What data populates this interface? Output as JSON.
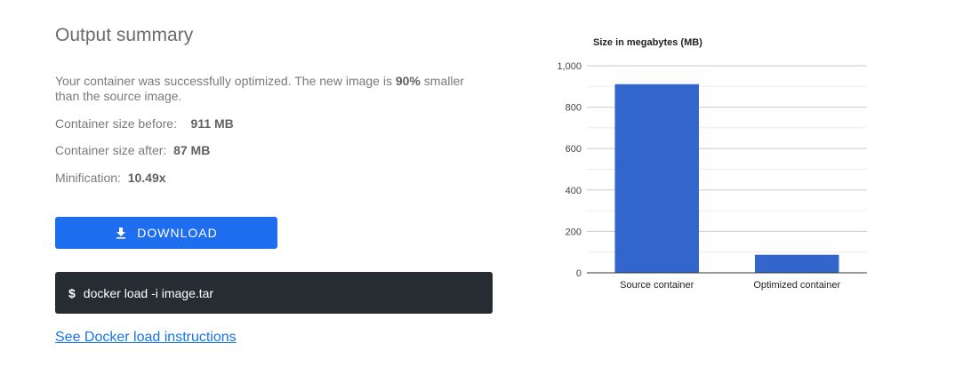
{
  "summary": {
    "title": "Output summary",
    "desc_part1": "Your container was successfully optimized. The new image is ",
    "desc_bold": "90%",
    "desc_part2": " smaller than the source image.",
    "before_label": "Container size before:",
    "before_value": "911 MB",
    "after_label": "Container size after:",
    "after_value": "87 MB",
    "minification_label": "Minification:",
    "minification_value": "10.49x"
  },
  "download": {
    "label": "DOWNLOAD",
    "icon": "download-icon"
  },
  "terminal": {
    "prompt": "$",
    "command": "docker load -i image.tar"
  },
  "link": {
    "label": "See Docker load instructions"
  },
  "colors": {
    "accent": "#1f6ef0",
    "bar": "#3366cc",
    "terminal_bg": "#252d33",
    "link": "#1a73e8"
  },
  "chart_data": {
    "type": "bar",
    "title": "Size in megabytes (MB)",
    "categories": [
      "Source container",
      "Optimized container"
    ],
    "values": [
      911,
      87
    ],
    "ylim": [
      0,
      1000
    ],
    "yticks": [
      0,
      200,
      400,
      600,
      800,
      1000
    ],
    "ytick_labels": [
      "0",
      "200",
      "400",
      "600",
      "800",
      "1,000"
    ],
    "grid": true,
    "xlabel": "",
    "ylabel": ""
  }
}
